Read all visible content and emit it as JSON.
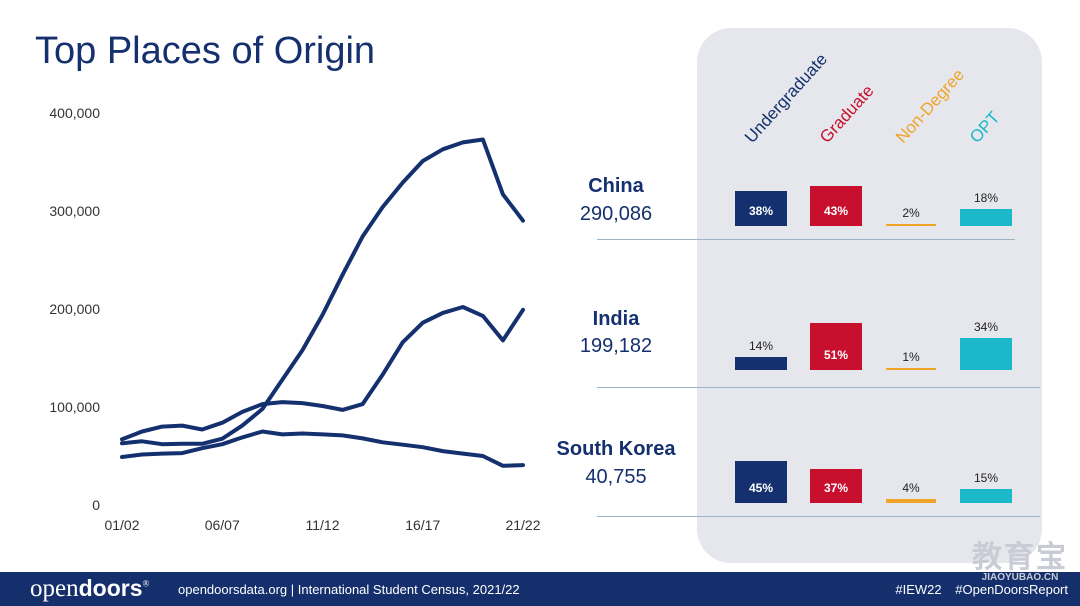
{
  "title": "Top Places of Origin",
  "colors": {
    "navy": "#14306e",
    "undergraduate": "#14306e",
    "graduate": "#c8102e",
    "non_degree": "#f0a42a",
    "opt": "#1ab8c8",
    "footer": "#142f6b"
  },
  "chart_data": {
    "type": "line",
    "x": [
      "01/02",
      "02/03",
      "03/04",
      "04/05",
      "05/06",
      "06/07",
      "07/08",
      "08/09",
      "09/10",
      "10/11",
      "11/12",
      "12/13",
      "13/14",
      "14/15",
      "15/16",
      "16/17",
      "17/18",
      "18/19",
      "19/20",
      "20/21",
      "21/22"
    ],
    "ylim": [
      0,
      400000
    ],
    "yticks": [
      "0",
      "100,000",
      "200,000",
      "300,000",
      "400,000"
    ],
    "ytick_values": [
      0,
      100000,
      200000,
      300000,
      400000
    ],
    "xticks": [
      "01/02",
      "06/07",
      "11/12",
      "16/17",
      "21/22"
    ],
    "series": [
      {
        "values": [
          63000,
          65000,
          62000,
          62500,
          62500,
          67700,
          81000,
          98000,
          128000,
          158000,
          194000,
          235000,
          274000,
          304000,
          329000,
          351000,
          363000,
          370000,
          373000,
          317000,
          290086
        ]
      },
      {
        "values": [
          67000,
          75000,
          80000,
          81000,
          77000,
          84000,
          95000,
          103000,
          105000,
          104000,
          101000,
          97000,
          103000,
          133000,
          166000,
          186000,
          196000,
          202000,
          193000,
          168000,
          199182
        ]
      },
      {
        "values": [
          49000,
          51500,
          52500,
          53000,
          58000,
          62000,
          69000,
          75000,
          72000,
          73000,
          72000,
          71000,
          68000,
          64000,
          61500,
          59000,
          55000,
          52500,
          50000,
          40000,
          40755
        ]
      }
    ]
  },
  "panel": {
    "headers": [
      {
        "label": "Undergraduate",
        "color": "#14306e"
      },
      {
        "label": "Graduate",
        "color": "#c8102e"
      },
      {
        "label": "Non-Degree",
        "color": "#f0a42a"
      },
      {
        "label": "OPT",
        "color": "#1ab8c8"
      }
    ],
    "rows": [
      {
        "name": "China",
        "total": "290,086",
        "shares": [
          "38%",
          "43%",
          "2%",
          "18%"
        ],
        "values": [
          38,
          43,
          2,
          18
        ]
      },
      {
        "name": "India",
        "total": "199,182",
        "shares": [
          "14%",
          "51%",
          "1%",
          "34%"
        ],
        "values": [
          14,
          51,
          1,
          34
        ]
      },
      {
        "name": "South Korea",
        "total": "40,755",
        "shares": [
          "45%",
          "37%",
          "4%",
          "15%"
        ],
        "values": [
          45,
          37,
          4,
          15
        ]
      }
    ]
  },
  "footer": {
    "logo_open": "open",
    "logo_doors": "doors",
    "logo_reg": "®",
    "text": "opendoorsdata.org  |  International Student Census, 2021/22",
    "tag1": "#IEW22",
    "tag2": "#OpenDoorsReport"
  },
  "watermark": {
    "cn": "教育宝",
    "en": "JIAOYUBAO.CN"
  }
}
